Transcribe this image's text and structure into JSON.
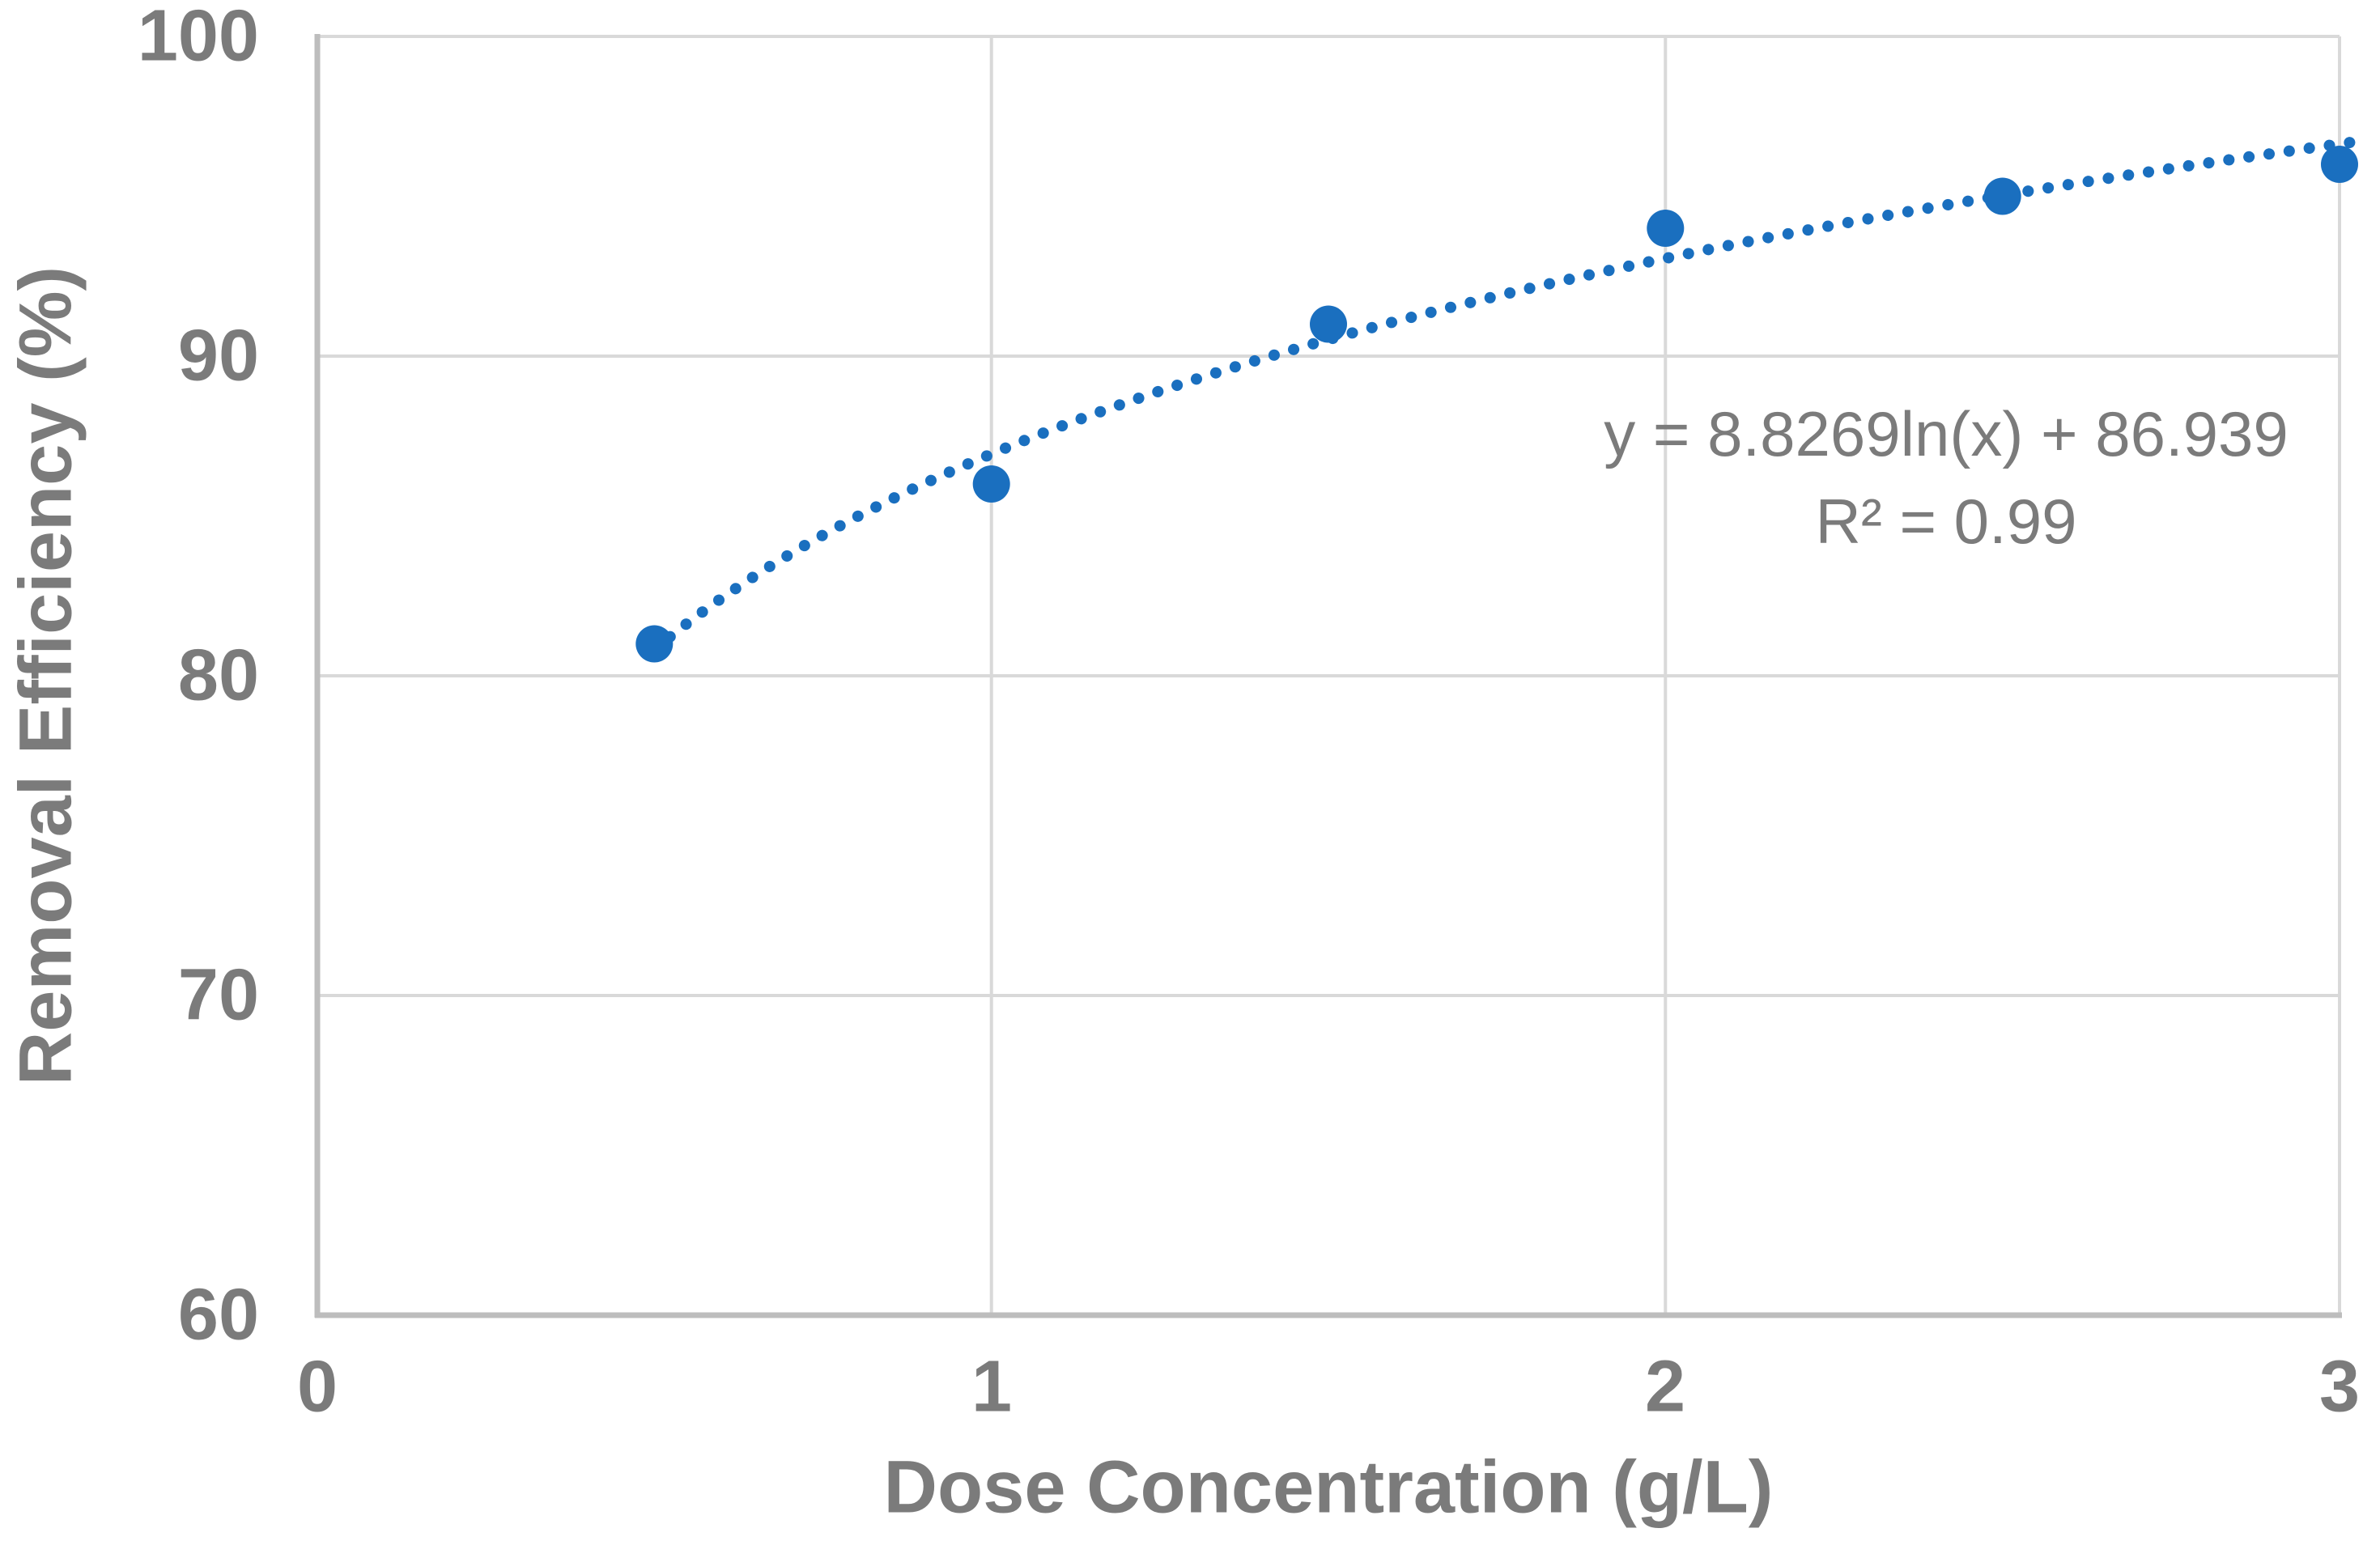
{
  "chart": {
    "y_axis_title": "Removal Efficiency (%)",
    "x_axis_title": "Dose Concentration (g/L)",
    "annotation": {
      "equation": "y = 8.8269ln(x) + 86.939",
      "r_squared": "R² = 0.99"
    }
  },
  "chart_data": {
    "type": "scatter",
    "title": "",
    "xlabel": "Dose Concentration (g/L)",
    "ylabel": "Removal Efficiency (%)",
    "x": [
      0.5,
      1,
      1.5,
      2,
      2.5,
      3
    ],
    "y": [
      81,
      86,
      91,
      94,
      95,
      96
    ],
    "xlim": [
      0,
      3
    ],
    "ylim": [
      60,
      100
    ],
    "x_ticks": [
      "0",
      "1",
      "2",
      "3"
    ],
    "x_tick_values": [
      0,
      1,
      2,
      3
    ],
    "y_ticks": [
      "60",
      "70",
      "80",
      "90",
      "100"
    ],
    "y_tick_values": [
      60,
      70,
      80,
      90,
      100
    ],
    "grid": true,
    "legend": "none",
    "trendline": {
      "type": "logarithmic",
      "slope": 8.8269,
      "intercept": 86.939,
      "equation": "y = 8.8269ln(x) + 86.939",
      "r_squared": 0.99,
      "style": "dotted",
      "x_start": 0.5,
      "x_end": 3.02
    }
  },
  "colors": {
    "series": "#1a6fbf",
    "gridline": "#d9d9d9",
    "axis_line": "#bdbdbd",
    "label_text": "#7b7b7b"
  }
}
